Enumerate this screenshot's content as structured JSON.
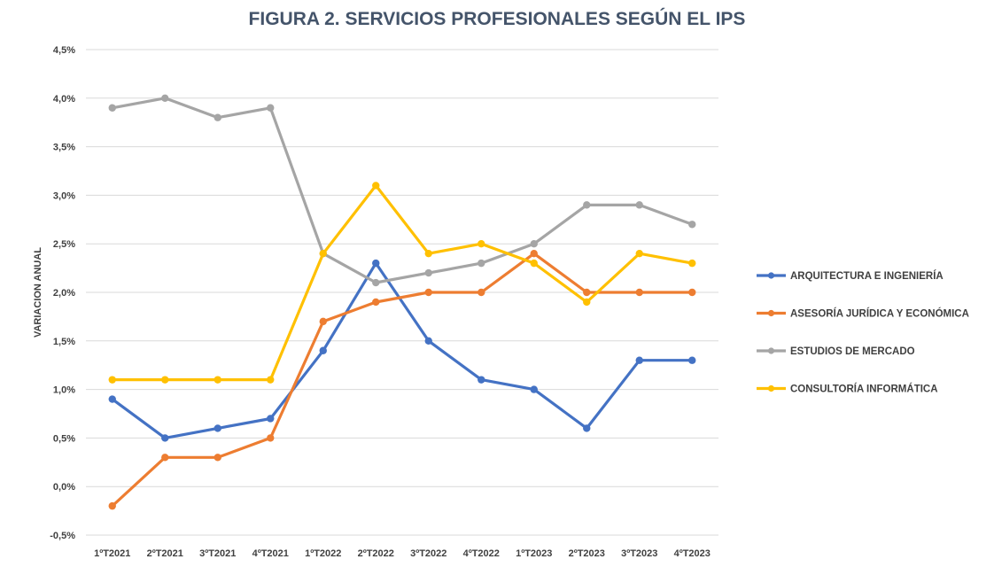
{
  "chart_data": {
    "type": "line",
    "title": "FIGURA 2. SERVICIOS PROFESIONALES SEGÚN EL IPS",
    "xlabel": "",
    "ylabel": "VARIACION ANUAL",
    "ylim": [
      -0.5,
      4.5
    ],
    "yticks": [
      "-0,5%",
      "0,0%",
      "0,5%",
      "1,0%",
      "1,5%",
      "2,0%",
      "2,5%",
      "3,0%",
      "3,5%",
      "4,0%",
      "4,5%"
    ],
    "yticks_values": [
      -0.5,
      0,
      0.5,
      1.0,
      1.5,
      2.0,
      2.5,
      3.0,
      3.5,
      4.0,
      4.5
    ],
    "grid": true,
    "legend_position": "right",
    "categories": [
      "1ºT2021",
      "2ºT2021",
      "3ºT2021",
      "4ºT2021",
      "1ºT2022",
      "2ºT2022",
      "3ºT2022",
      "4ºT2022",
      "1ºT2023",
      "2ºT2023",
      "3ºT2023",
      "4ºT2023"
    ],
    "series": [
      {
        "name": "ARQUITECTURA E INGENIERÍA",
        "color": "#4472c4",
        "values": [
          0.9,
          0.5,
          0.6,
          0.7,
          1.4,
          2.3,
          1.5,
          1.1,
          1.0,
          0.6,
          1.3,
          1.3
        ]
      },
      {
        "name": "ASESORÍA JURÍDICA Y ECONÓMICA",
        "color": "#ed7d31",
        "values": [
          -0.2,
          0.3,
          0.3,
          0.5,
          1.7,
          1.9,
          2.0,
          2.0,
          2.4,
          2.0,
          2.0,
          2.0
        ]
      },
      {
        "name": "ESTUDIOS DE MERCADO",
        "color": "#a5a5a5",
        "values": [
          3.9,
          4.0,
          3.8,
          3.9,
          2.4,
          2.1,
          2.2,
          2.3,
          2.5,
          2.9,
          2.9,
          2.7
        ]
      },
      {
        "name": "CONSULTORÍA INFORMÁTICA",
        "color": "#ffc000",
        "values": [
          1.1,
          1.1,
          1.1,
          1.1,
          2.4,
          3.1,
          2.4,
          2.5,
          2.3,
          1.9,
          2.4,
          2.3
        ]
      }
    ]
  }
}
